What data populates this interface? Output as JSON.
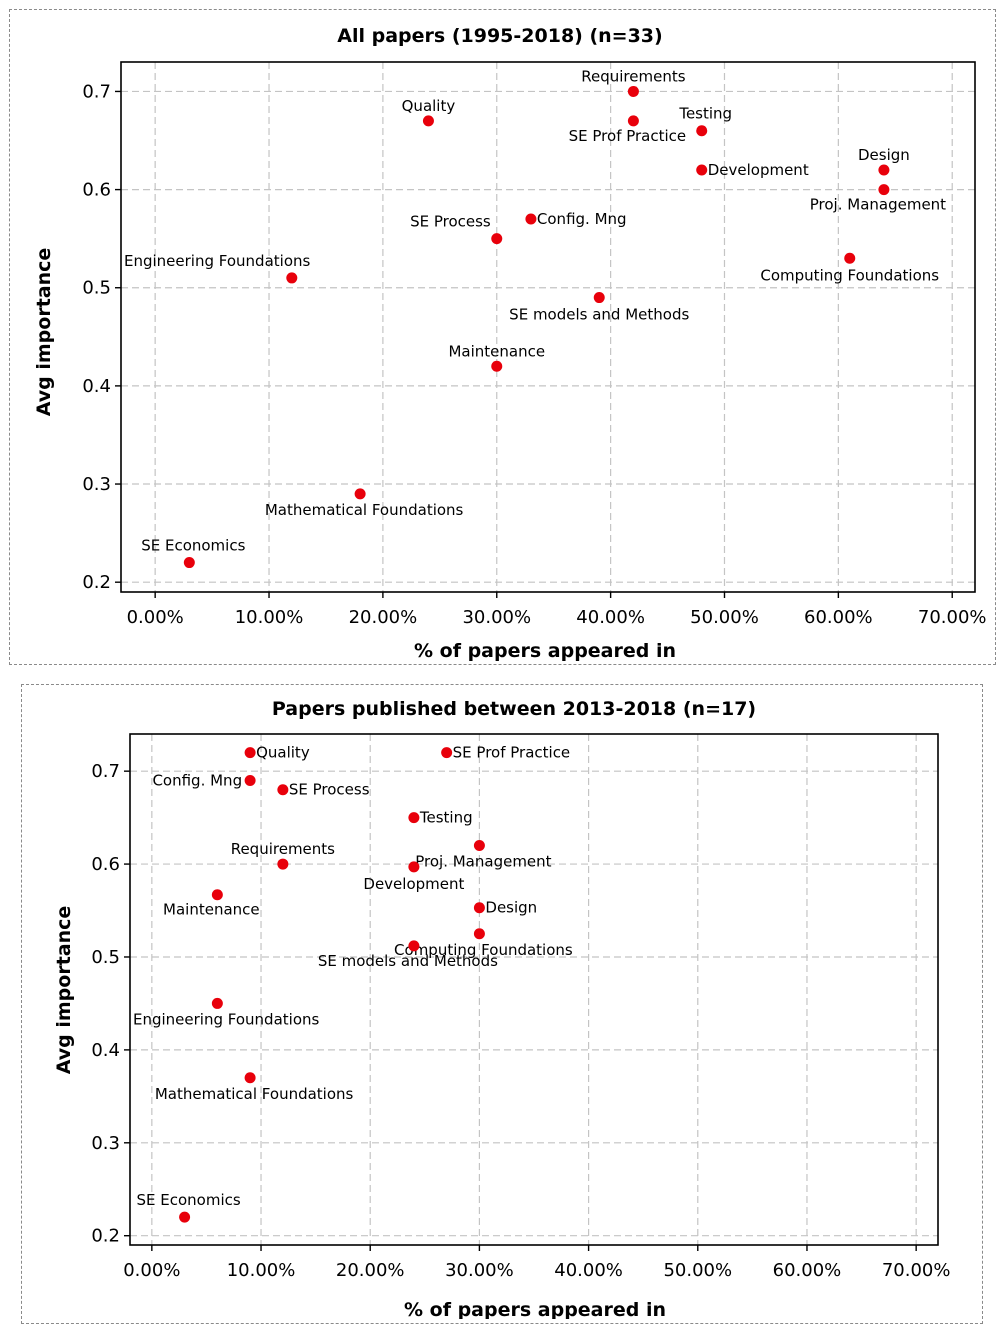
{
  "chart_data": [
    {
      "type": "scatter",
      "title": "All papers (1995-2018) (n=33)",
      "xlabel": "% of papers appeared in",
      "ylabel": "Avg importance",
      "xlim": [
        -0.03,
        0.72
      ],
      "ylim": [
        0.19,
        0.73
      ],
      "xticks": [
        0,
        0.1,
        0.2,
        0.3,
        0.4,
        0.5,
        0.6,
        0.7
      ],
      "xtick_labels": [
        "0.00%",
        "10.00%",
        "20.00%",
        "30.00%",
        "40.00%",
        "50.00%",
        "60.00%",
        "70.00%"
      ],
      "yticks": [
        0.2,
        0.3,
        0.4,
        0.5,
        0.6,
        0.7
      ],
      "ytick_labels": [
        "0.2",
        "0.3",
        "0.4",
        "0.5",
        "0.6",
        "0.7"
      ],
      "grid": true,
      "marker_color": "#e8000b",
      "points": [
        {
          "label": "Requirements",
          "x": 0.42,
          "y": 0.7,
          "pos": "above"
        },
        {
          "label": "Quality",
          "x": 0.24,
          "y": 0.67,
          "pos": "above"
        },
        {
          "label": "SE Prof Practice",
          "x": 0.42,
          "y": 0.67,
          "pos": "below-left"
        },
        {
          "label": "Testing",
          "x": 0.48,
          "y": 0.66,
          "pos": "above-right"
        },
        {
          "label": "Development",
          "x": 0.48,
          "y": 0.62,
          "pos": "right"
        },
        {
          "label": "Design",
          "x": 0.64,
          "y": 0.62,
          "pos": "above"
        },
        {
          "label": "Proj. Management",
          "x": 0.64,
          "y": 0.6,
          "pos": "below-left"
        },
        {
          "label": "Config. Mng",
          "x": 0.33,
          "y": 0.57,
          "pos": "right"
        },
        {
          "label": "SE Process",
          "x": 0.3,
          "y": 0.55,
          "pos": "above-left"
        },
        {
          "label": "Computing Foundations",
          "x": 0.61,
          "y": 0.53,
          "pos": "below"
        },
        {
          "label": "Engineering Foundations",
          "x": 0.12,
          "y": 0.51,
          "pos": "above-left"
        },
        {
          "label": "SE models and Methods",
          "x": 0.39,
          "y": 0.49,
          "pos": "below"
        },
        {
          "label": "Maintenance",
          "x": 0.3,
          "y": 0.42,
          "pos": "above"
        },
        {
          "label": "Mathematical Foundations",
          "x": 0.18,
          "y": 0.29,
          "pos": "below-right"
        },
        {
          "label": "SE Economics",
          "x": 0.03,
          "y": 0.22,
          "pos": "above-right"
        }
      ]
    },
    {
      "type": "scatter",
      "title": "Papers published between 2013-2018 (n=17)",
      "xlabel": "% of papers appeared in",
      "ylabel": "Avg importance",
      "xlim": [
        -0.02,
        0.72
      ],
      "ylim": [
        0.19,
        0.74
      ],
      "xticks": [
        0,
        0.1,
        0.2,
        0.3,
        0.4,
        0.5,
        0.6,
        0.7
      ],
      "xtick_labels": [
        "0.00%",
        "10.00%",
        "20.00%",
        "30.00%",
        "40.00%",
        "50.00%",
        "60.00%",
        "70.00%"
      ],
      "yticks": [
        0.2,
        0.3,
        0.4,
        0.5,
        0.6,
        0.7
      ],
      "ytick_labels": [
        "0.2",
        "0.3",
        "0.4",
        "0.5",
        "0.6",
        "0.7"
      ],
      "grid": true,
      "marker_color": "#e8000b",
      "points": [
        {
          "label": "Quality",
          "x": 0.09,
          "y": 0.72,
          "pos": "right"
        },
        {
          "label": "SE Prof Practice",
          "x": 0.27,
          "y": 0.72,
          "pos": "right"
        },
        {
          "label": "Config. Mng",
          "x": 0.09,
          "y": 0.69,
          "pos": "left"
        },
        {
          "label": "SE Process",
          "x": 0.12,
          "y": 0.68,
          "pos": "right"
        },
        {
          "label": "Testing",
          "x": 0.24,
          "y": 0.65,
          "pos": "right"
        },
        {
          "label": "Proj. Management",
          "x": 0.3,
          "y": 0.62,
          "pos": "below-right"
        },
        {
          "label": "Requirements",
          "x": 0.12,
          "y": 0.6,
          "pos": "above"
        },
        {
          "label": "Development",
          "x": 0.24,
          "y": 0.597,
          "pos": "below"
        },
        {
          "label": "Maintenance",
          "x": 0.06,
          "y": 0.567,
          "pos": "below-left"
        },
        {
          "label": "Design",
          "x": 0.3,
          "y": 0.553,
          "pos": "right"
        },
        {
          "label": "Computing Foundations",
          "x": 0.3,
          "y": 0.525,
          "pos": "below-right"
        },
        {
          "label": "SE models and Methods",
          "x": 0.24,
          "y": 0.512,
          "pos": "below-left"
        },
        {
          "label": "Engineering Foundations",
          "x": 0.06,
          "y": 0.45,
          "pos": "below-right"
        },
        {
          "label": "Mathematical Foundations",
          "x": 0.09,
          "y": 0.37,
          "pos": "below-right"
        },
        {
          "label": "SE Economics",
          "x": 0.03,
          "y": 0.22,
          "pos": "above-right"
        }
      ]
    }
  ]
}
